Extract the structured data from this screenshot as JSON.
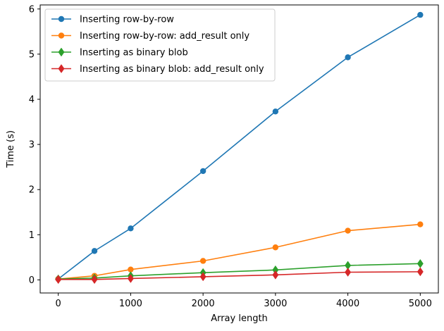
{
  "chart_data": {
    "type": "line",
    "title": "",
    "xlabel": "Array length",
    "ylabel": "Time (s)",
    "xlim": [
      -250,
      5250
    ],
    "ylim": [
      -0.29,
      6.09
    ],
    "xticks": [
      0,
      1000,
      2000,
      3000,
      4000,
      5000
    ],
    "yticks": [
      0,
      1,
      2,
      3,
      4,
      5,
      6
    ],
    "grid": false,
    "legend_position": "top-left",
    "x": [
      0,
      500,
      1000,
      2000,
      3000,
      4000,
      5000
    ],
    "series": [
      {
        "name": "Inserting row-by-row",
        "color": "#1f77b4",
        "marker": "circle",
        "values": [
          0.02,
          0.64,
          1.14,
          2.41,
          3.73,
          4.93,
          5.87
        ]
      },
      {
        "name": "Inserting row-by-row: add_result only",
        "color": "#ff7f0e",
        "marker": "circle",
        "values": [
          0.02,
          0.09,
          0.23,
          0.42,
          0.72,
          1.09,
          1.23
        ]
      },
      {
        "name": "Inserting as binary blob",
        "color": "#2ca02c",
        "marker": "diamond",
        "values": [
          0.02,
          0.04,
          0.09,
          0.16,
          0.22,
          0.32,
          0.36
        ]
      },
      {
        "name": "Inserting as binary blob: add_result only",
        "color": "#d62728",
        "marker": "diamond",
        "values": [
          0.01,
          0.01,
          0.03,
          0.07,
          0.11,
          0.17,
          0.18
        ]
      }
    ]
  }
}
